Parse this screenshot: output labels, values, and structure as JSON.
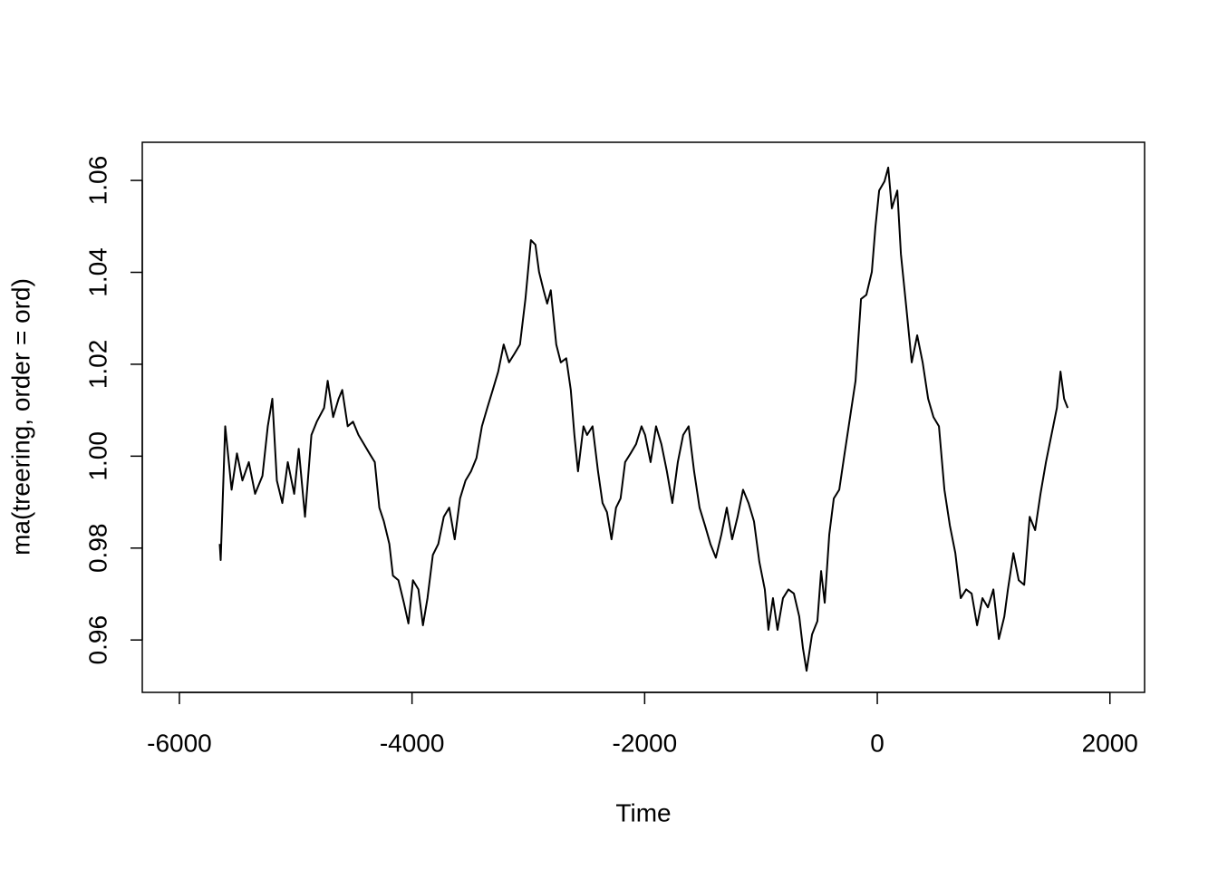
{
  "chart_data": {
    "type": "line",
    "xlabel": "Time",
    "ylabel": "ma(treering, order = ord)",
    "color": "#000000",
    "xlim": [
      -6319,
      2298
    ],
    "ylim": [
      0.9486,
      1.0683
    ],
    "xticks": [
      -6000,
      -4000,
      -2000,
      0,
      2000
    ],
    "yticks": [
      0.96,
      0.98,
      {
        "value": 1,
        "label": "1.00"
      },
      1.02,
      1.04,
      1.06
    ],
    "x": [
      -5653,
      -5645,
      -5606,
      -5551,
      -5505,
      -5458,
      -5403,
      -5349,
      -5286,
      -5240,
      -5201,
      -5162,
      -5115,
      -5068,
      -5013,
      -4974,
      -4920,
      -4865,
      -4819,
      -4756,
      -4725,
      -4678,
      -4631,
      -4600,
      -4553,
      -4507,
      -4460,
      -4413,
      -4366,
      -4320,
      -4281,
      -4242,
      -4195,
      -4164,
      -4117,
      -4070,
      -4031,
      -3992,
      -3945,
      -3906,
      -3867,
      -3821,
      -3774,
      -3727,
      -3680,
      -3633,
      -3587,
      -3540,
      -3493,
      -3446,
      -3399,
      -3353,
      -3306,
      -3259,
      -3212,
      -3166,
      -3119,
      -3072,
      -3025,
      -2978,
      -2939,
      -2908,
      -2869,
      -2838,
      -2807,
      -2760,
      -2721,
      -2674,
      -2635,
      -2604,
      -2573,
      -2526,
      -2495,
      -2448,
      -2401,
      -2362,
      -2324,
      -2285,
      -2246,
      -2207,
      -2168,
      -2121,
      -2074,
      -2027,
      -1996,
      -1949,
      -1902,
      -1856,
      -1809,
      -1762,
      -1715,
      -1669,
      -1622,
      -1575,
      -1528,
      -1481,
      -1435,
      -1388,
      -1341,
      -1294,
      -1248,
      -1201,
      -1154,
      -1107,
      -1060,
      -1014,
      -967,
      -936,
      -897,
      -858,
      -811,
      -764,
      -717,
      -671,
      -639,
      -608,
      -561,
      -515,
      -483,
      -452,
      -413,
      -374,
      -327,
      -281,
      -234,
      -187,
      -140,
      -94,
      -47,
      -16,
      16,
      62,
      94,
      125,
      172,
      203,
      250,
      296,
      343,
      390,
      437,
      483,
      530,
      577,
      624,
      671,
      717,
      764,
      811,
      858,
      904,
      951,
      998,
      1045,
      1092,
      1123,
      1170,
      1216,
      1263,
      1310,
      1357,
      1403,
      1450,
      1497,
      1544,
      1575,
      1606,
      1637
    ],
    "values": [
      0.9809,
      0.9774,
      1.0065,
      0.9927,
      1.0006,
      0.9947,
      0.9987,
      0.9918,
      0.9957,
      1.0065,
      1.0125,
      0.9947,
      0.9898,
      0.9987,
      0.9918,
      1.0016,
      0.9868,
      1.0046,
      1.0075,
      1.0105,
      1.0164,
      1.0085,
      1.0125,
      1.0144,
      1.0065,
      1.0075,
      1.0046,
      1.0026,
      1.0006,
      0.9987,
      0.9888,
      0.9858,
      0.9809,
      0.974,
      0.973,
      0.9681,
      0.9636,
      0.973,
      0.971,
      0.9632,
      0.9691,
      0.9785,
      0.9809,
      0.9868,
      0.9888,
      0.9819,
      0.9908,
      0.9947,
      0.9967,
      0.9996,
      1.0065,
      1.0105,
      1.0144,
      1.0184,
      1.0243,
      1.0204,
      1.0223,
      1.0243,
      1.0342,
      1.047,
      1.046,
      1.0401,
      1.0361,
      1.0332,
      1.0361,
      1.0243,
      1.0204,
      1.0213,
      1.0144,
      1.0046,
      0.9967,
      1.0065,
      1.0046,
      1.0065,
      0.9967,
      0.9898,
      0.9878,
      0.9819,
      0.9888,
      0.9908,
      0.9987,
      1.0006,
      1.0026,
      1.0065,
      1.0046,
      0.9987,
      1.0065,
      1.0026,
      0.9967,
      0.9898,
      0.9987,
      1.0046,
      1.0065,
      0.9967,
      0.9888,
      0.9849,
      0.9809,
      0.9779,
      0.9829,
      0.9888,
      0.9819,
      0.9868,
      0.9927,
      0.9898,
      0.9858,
      0.977,
      0.971,
      0.9622,
      0.9691,
      0.9622,
      0.9691,
      0.971,
      0.9701,
      0.9651,
      0.9582,
      0.9533,
      0.9612,
      0.9641,
      0.975,
      0.9681,
      0.9829,
      0.9908,
      0.9927,
      1.0006,
      1.0085,
      1.0164,
      1.0342,
      1.0351,
      1.0401,
      1.0499,
      1.0578,
      1.0598,
      1.0628,
      1.0539,
      1.0578,
      1.044,
      1.0322,
      1.0204,
      1.0263,
      1.0204,
      1.0125,
      1.0085,
      1.0065,
      0.9927,
      0.9849,
      0.9789,
      0.9691,
      0.971,
      0.9701,
      0.9632,
      0.9691,
      0.9671,
      0.971,
      0.9602,
      0.9651,
      0.971,
      0.9789,
      0.973,
      0.972,
      0.9868,
      0.9839,
      0.9918,
      0.9987,
      1.0046,
      1.0105,
      1.0184,
      1.0125,
      1.0105
    ]
  }
}
